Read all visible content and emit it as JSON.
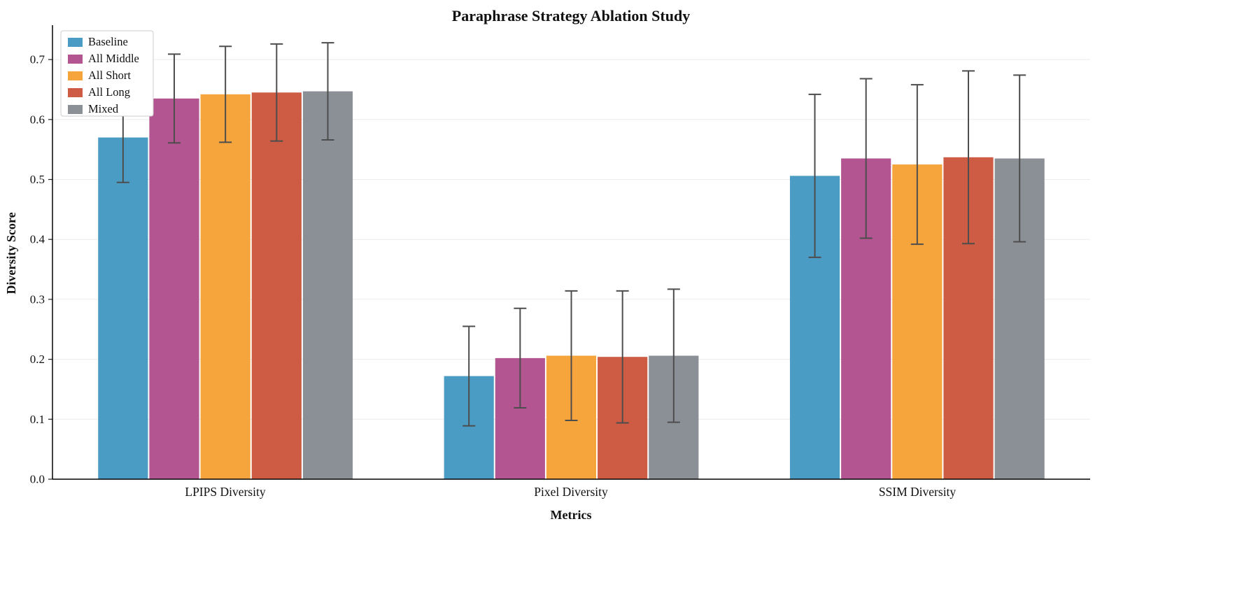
{
  "chart_data": {
    "type": "bar",
    "title": "Paraphrase Strategy Ablation Study",
    "xlabel": "Metrics",
    "ylabel": "Diversity Score",
    "categories": [
      "LPIPS Diversity",
      "Pixel Diversity",
      "SSIM Diversity"
    ],
    "series": [
      {
        "name": "Baseline",
        "color": "#4A9CC4",
        "values": [
          0.57,
          0.172,
          0.506
        ],
        "errors": [
          0.075,
          0.083,
          0.136
        ]
      },
      {
        "name": "All Middle",
        "color": "#B25590",
        "values": [
          0.635,
          0.202,
          0.535
        ],
        "errors": [
          0.074,
          0.083,
          0.133
        ]
      },
      {
        "name": "All Short",
        "color": "#F6A43C",
        "values": [
          0.642,
          0.206,
          0.525
        ],
        "errors": [
          0.08,
          0.108,
          0.133
        ]
      },
      {
        "name": "All Long",
        "color": "#CE5B43",
        "values": [
          0.645,
          0.204,
          0.537
        ],
        "errors": [
          0.081,
          0.11,
          0.144
        ]
      },
      {
        "name": "Mixed",
        "color": "#8B9097",
        "values": [
          0.647,
          0.206,
          0.535
        ],
        "errors": [
          0.081,
          0.111,
          0.139
        ]
      }
    ],
    "ylim": [
      0,
      0.755
    ],
    "yticks": [
      0.0,
      0.1,
      0.2,
      0.3,
      0.4,
      0.5,
      0.6,
      0.7
    ],
    "grid": true,
    "legend_position": "upper left",
    "error_bar_color": "#4d4d4d",
    "axis_color": "#000000",
    "grid_color": "#ececec"
  }
}
